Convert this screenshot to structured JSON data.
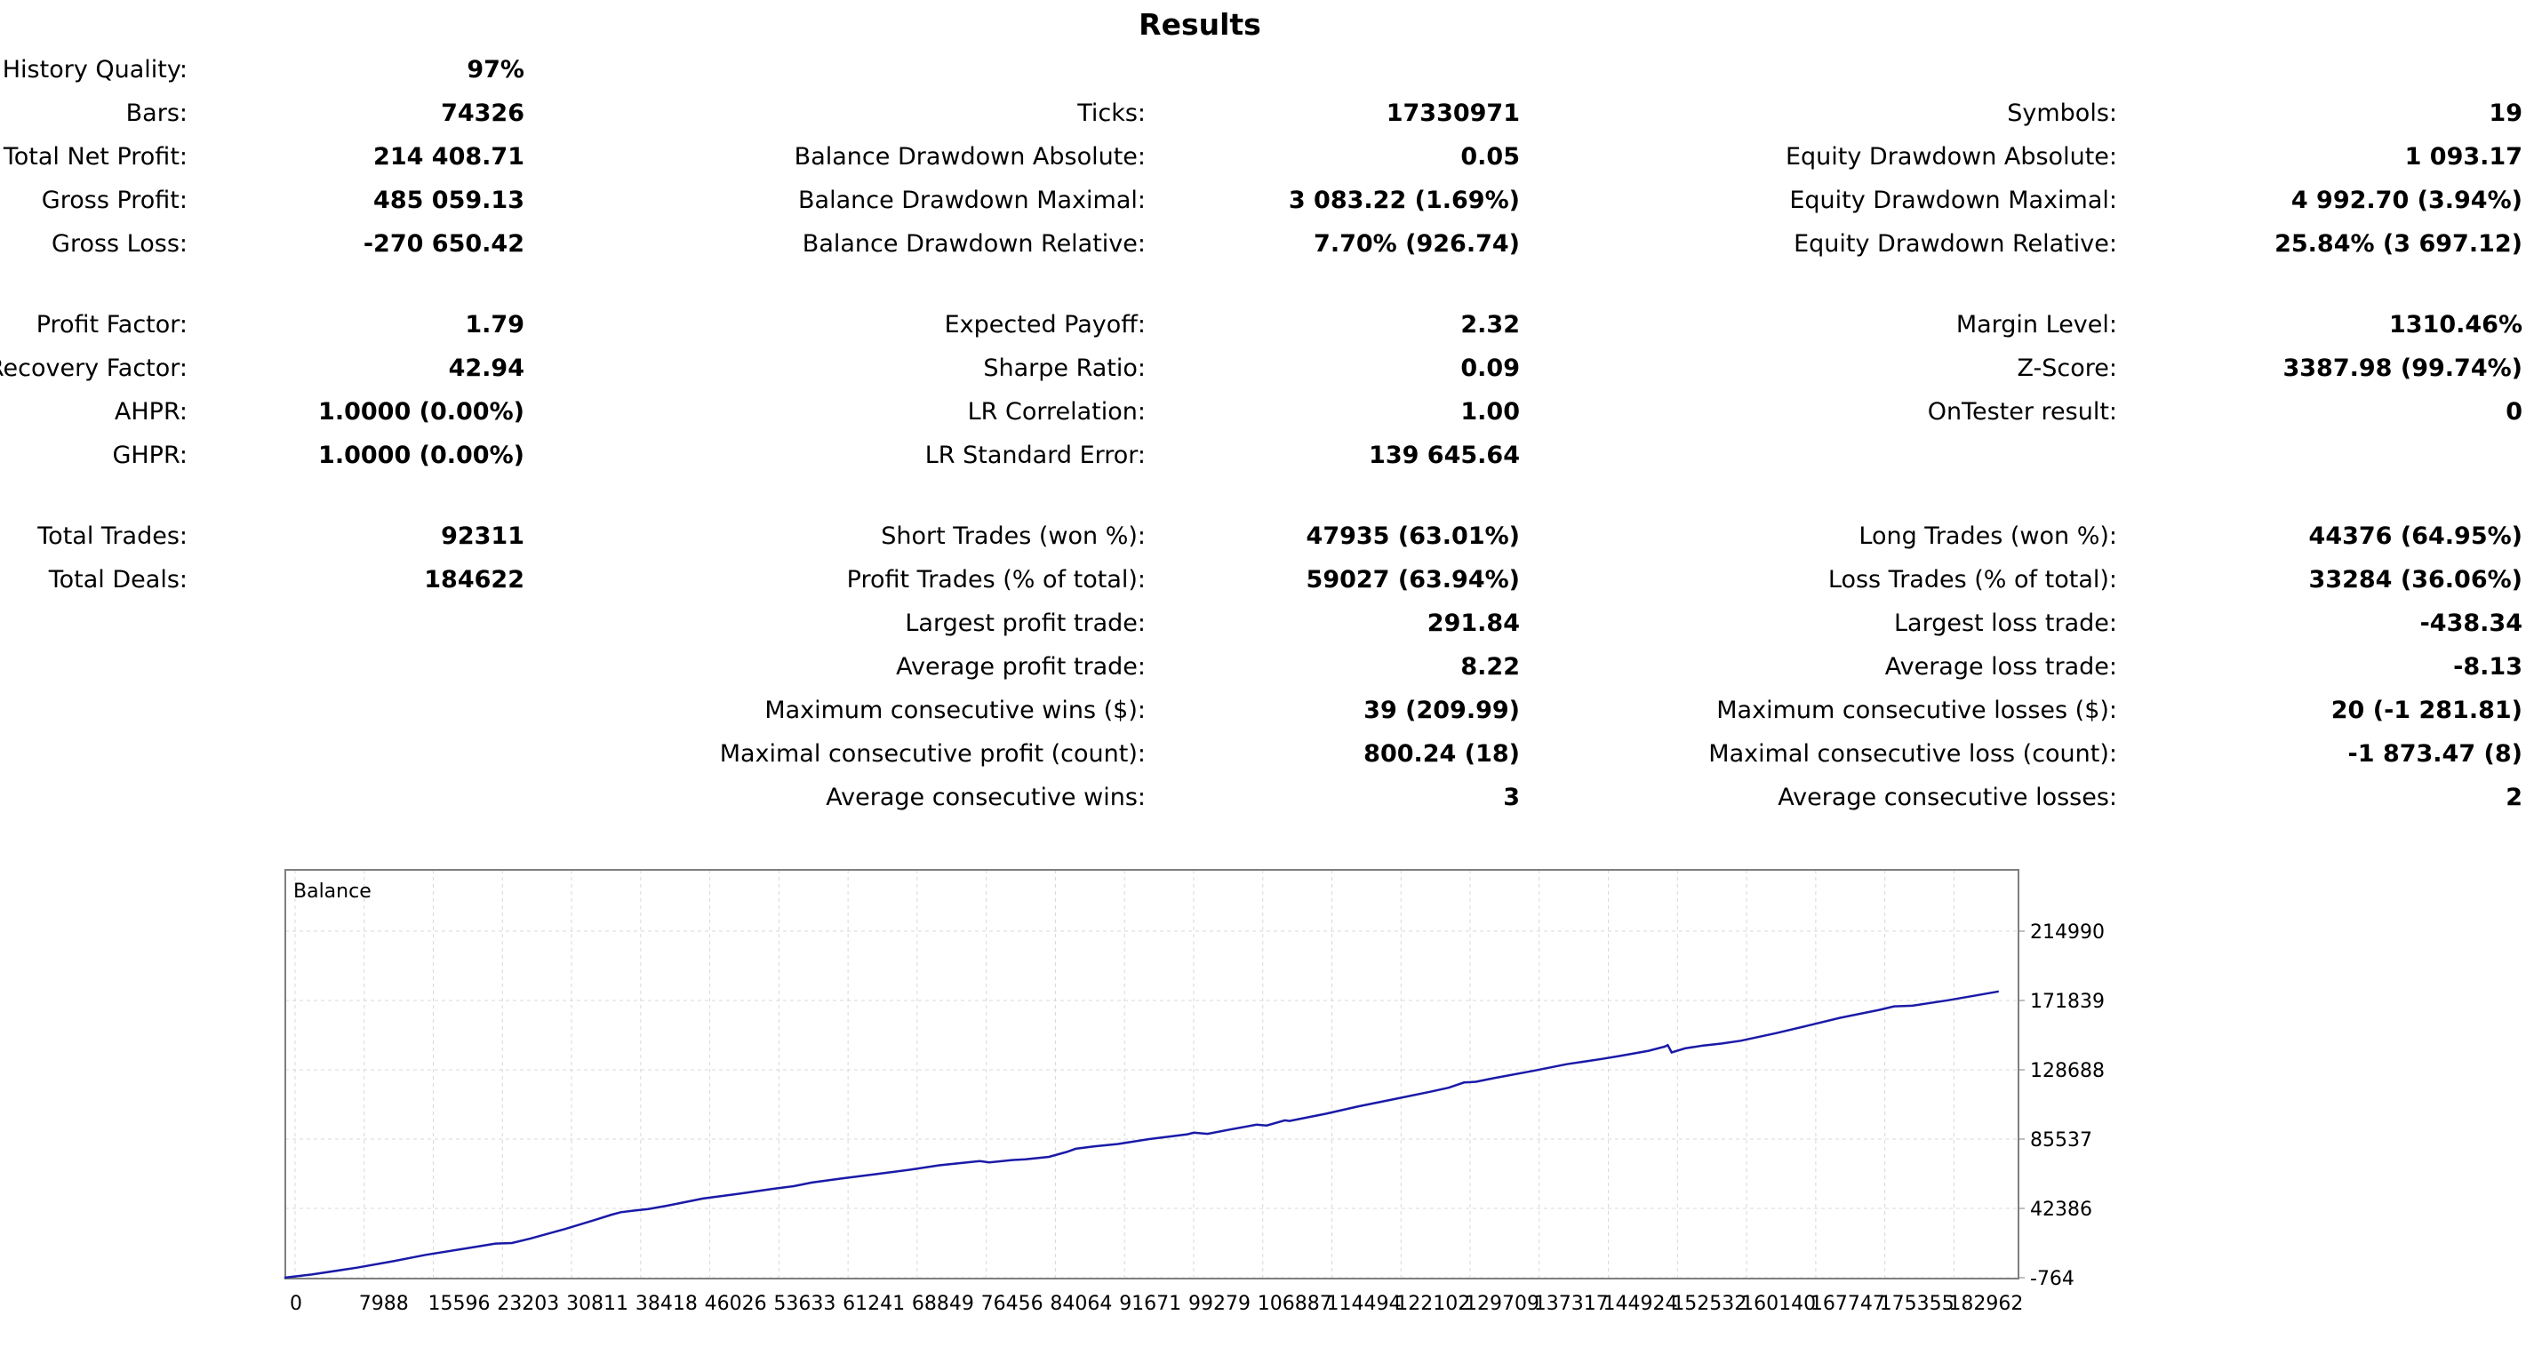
{
  "title": "Results",
  "rows": [
    {
      "c1": {
        "label": "History Quality:",
        "value": "97%"
      }
    },
    {
      "c1": {
        "label": "Bars:",
        "value": "74326"
      },
      "c2": {
        "label": "Ticks:",
        "value": "17330971"
      },
      "c3": {
        "label": "Symbols:",
        "value": "19"
      }
    },
    {
      "c1": {
        "label": "Total Net Profit:",
        "value": "214 408.71"
      },
      "c2": {
        "label": "Balance Drawdown Absolute:",
        "value": "0.05"
      },
      "c3": {
        "label": "Equity Drawdown Absolute:",
        "value": "1 093.17"
      }
    },
    {
      "c1": {
        "label": "Gross Profit:",
        "value": "485 059.13"
      },
      "c2": {
        "label": "Balance Drawdown Maximal:",
        "value": "3 083.22 (1.69%)"
      },
      "c3": {
        "label": "Equity Drawdown Maximal:",
        "value": "4 992.70 (3.94%)"
      }
    },
    {
      "c1": {
        "label": "Gross Loss:",
        "value": "-270 650.42"
      },
      "c2": {
        "label": "Balance Drawdown Relative:",
        "value": "7.70% (926.74)"
      },
      "c3": {
        "label": "Equity Drawdown Relative:",
        "value": "25.84% (3 697.12)"
      }
    },
    {
      "c1": {
        "label": "Profit Factor:",
        "value": "1.79"
      },
      "c2": {
        "label": "Expected Payoff:",
        "value": "2.32"
      },
      "c3": {
        "label": "Margin Level:",
        "value": "1310.46%"
      }
    },
    {
      "c1": {
        "label": "Recovery Factor:",
        "value": "42.94"
      },
      "c2": {
        "label": "Sharpe Ratio:",
        "value": "0.09"
      },
      "c3": {
        "label": "Z-Score:",
        "value": "3387.98 (99.74%)"
      }
    },
    {
      "c1": {
        "label": "AHPR:",
        "value": "1.0000 (0.00%)"
      },
      "c2": {
        "label": "LR Correlation:",
        "value": "1.00"
      },
      "c3": {
        "label": "OnTester result:",
        "value": "0"
      }
    },
    {
      "c1": {
        "label": "GHPR:",
        "value": "1.0000 (0.00%)"
      },
      "c2": {
        "label": "LR Standard Error:",
        "value": "139 645.64"
      }
    },
    {
      "c1": {
        "label": "Total Trades:",
        "value": "92311"
      },
      "c2": {
        "label": "Short Trades (won %):",
        "value": "47935 (63.01%)"
      },
      "c3": {
        "label": "Long Trades (won %):",
        "value": "44376 (64.95%)"
      }
    },
    {
      "c1": {
        "label": "Total Deals:",
        "value": "184622"
      },
      "c2": {
        "label": "Profit Trades (% of total):",
        "value": "59027 (63.94%)"
      },
      "c3": {
        "label": "Loss Trades (% of total):",
        "value": "33284 (36.06%)"
      }
    },
    {
      "c2": {
        "label": "Largest profit trade:",
        "value": "291.84"
      },
      "c3": {
        "label": "Largest loss trade:",
        "value": "-438.34"
      }
    },
    {
      "c2": {
        "label": "Average profit trade:",
        "value": "8.22"
      },
      "c3": {
        "label": "Average loss trade:",
        "value": "-8.13"
      }
    },
    {
      "c2": {
        "label": "Maximum consecutive wins ($):",
        "value": "39 (209.99)"
      },
      "c3": {
        "label": "Maximum consecutive losses ($):",
        "value": "20 (-1 281.81)"
      }
    },
    {
      "c2": {
        "label": "Maximal consecutive profit (count):",
        "value": "800.24 (18)"
      },
      "c3": {
        "label": "Maximal consecutive loss (count):",
        "value": "-1 873.47 (8)"
      }
    },
    {
      "c2": {
        "label": "Average consecutive wins:",
        "value": "3"
      },
      "c3": {
        "label": "Average consecutive losses:",
        "value": "2"
      }
    }
  ],
  "chart_data": {
    "type": "line",
    "series": [
      {
        "name": "Balance",
        "color": "#1a1aa8",
        "x": [
          0,
          3000,
          7988,
          12000,
          15596,
          20000,
          23203,
          25000,
          27000,
          30811,
          34000,
          36000,
          37000,
          38418,
          40000,
          42000,
          46026,
          50000,
          53633,
          56000,
          58000,
          61241,
          65000,
          68849,
          72000,
          76456,
          77500,
          80000,
          81500,
          84064,
          86000,
          87000,
          89000,
          91671,
          95000,
          99279,
          100000,
          101500,
          104000,
          106887,
          108000,
          110000,
          110500,
          114494,
          118000,
          122102,
          126000,
          128000,
          129709,
          131000,
          133000,
          137317,
          141000,
          144924,
          147000,
          150000,
          151800,
          152100,
          152532,
          154000,
          156000,
          158000,
          160140,
          164000,
          167747,
          171000,
          175355,
          177000,
          179000,
          182962,
          186000,
          188500
        ],
        "y": [
          -764,
          1200,
          5500,
          9500,
          13500,
          17500,
          20500,
          20800,
          23500,
          29500,
          35000,
          38500,
          40000,
          41000,
          42000,
          44000,
          48500,
          51500,
          54500,
          56200,
          58500,
          61000,
          63700,
          66500,
          69200,
          71800,
          71000,
          72500,
          73000,
          74500,
          77500,
          79500,
          81000,
          82500,
          85500,
          88500,
          89500,
          88800,
          91500,
          94500,
          94000,
          97200,
          96800,
          101300,
          105800,
          110500,
          115000,
          117500,
          120800,
          121200,
          123500,
          128000,
          132200,
          135500,
          137500,
          140500,
          143200,
          144000,
          139500,
          142000,
          143800,
          145000,
          146800,
          151500,
          156500,
          161000,
          166000,
          168200,
          168600,
          172000,
          175000,
          177500
        ]
      }
    ],
    "x_ticks": [
      "0",
      "7988",
      "15596",
      "23203",
      "30811",
      "38418",
      "46026",
      "53633",
      "61241",
      "68849",
      "76456",
      "84064",
      "91671",
      "99279",
      "106887",
      "114494",
      "122102",
      "129709",
      "137317",
      "144924",
      "152532",
      "160140",
      "167747",
      "175355",
      "182962"
    ],
    "y_ticks": [
      "-764",
      "42386",
      "85537",
      "128688",
      "171839",
      "214990"
    ],
    "xlim": [
      0,
      190570
    ],
    "ylim": [
      -764,
      214990
    ],
    "grid": true,
    "grid_color": "#d8d8d8",
    "axis_color": "#7f7f7f"
  }
}
